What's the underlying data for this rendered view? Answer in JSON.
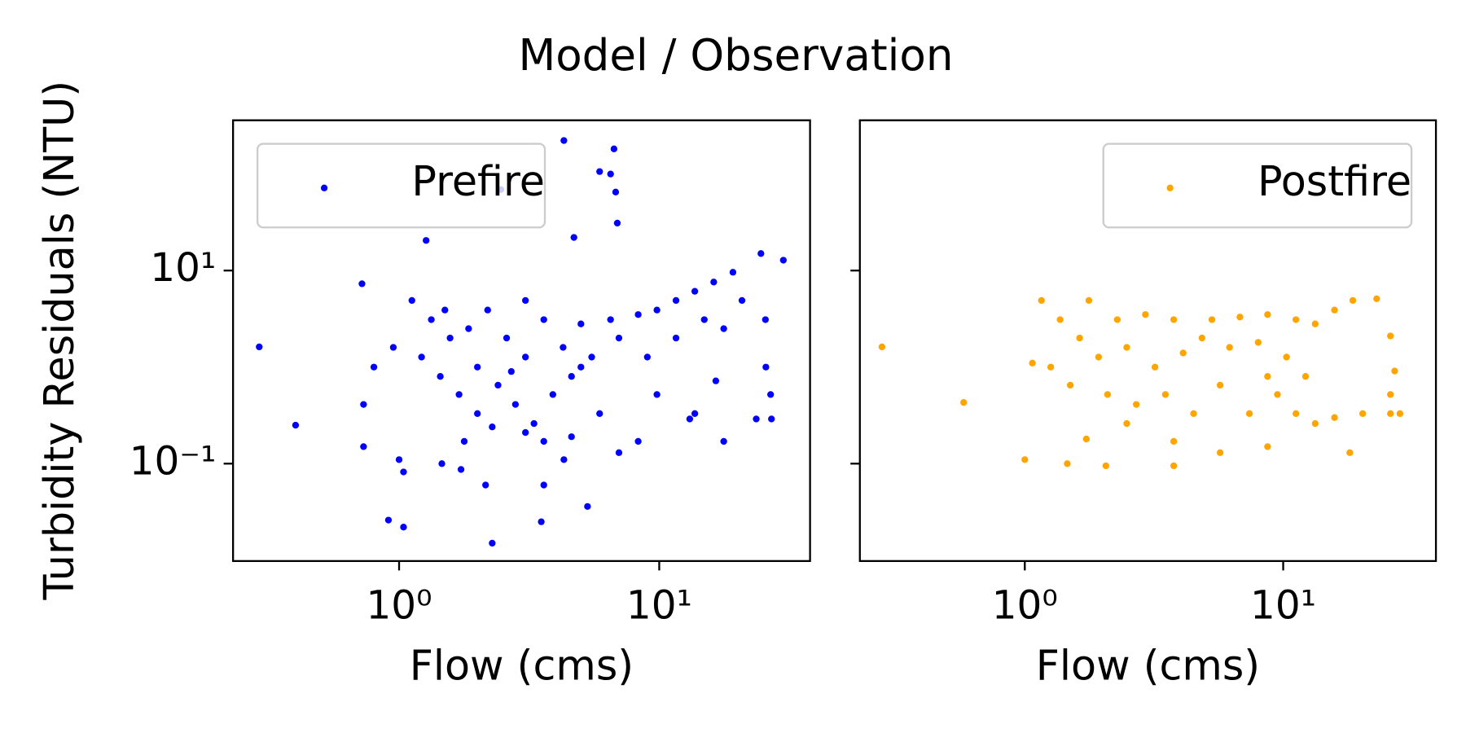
{
  "title": "Model / Observation",
  "ylabel": "Turbidity Residuals (NTU)",
  "chart_data": [
    {
      "type": "scatter",
      "xlabel": "Flow (cms)",
      "xscale": "log",
      "yscale": "log",
      "xlim": [
        0.23,
        38
      ],
      "ylim": [
        0.0098,
        360
      ],
      "xticks": [
        {
          "value": 1,
          "label": "10⁰"
        },
        {
          "value": 10,
          "label": "10¹"
        }
      ],
      "yticks": [
        {
          "value": 0.1,
          "label": "10⁻¹"
        },
        {
          "value": 10,
          "label": "10¹"
        }
      ],
      "legend": "upper left",
      "series": [
        {
          "name": "Prefire",
          "color": "#0000ff",
          "x": [
            0.29,
            0.4,
            0.72,
            0.73,
            0.73,
            0.91,
            1.0,
            1.04,
            1.04,
            1.27,
            1.46,
            1.73,
            2.15,
            2.28,
            2.46,
            3.52,
            3.6,
            4.3,
            4.7,
            5.3,
            6.7,
            6.5,
            6.8,
            6.9,
            5.9,
            30,
            24.6,
            19.2,
            16.2,
            13.7,
            11.6,
            9.8,
            8.3,
            6.5,
            5.0,
            25.6,
            20.8,
            17.7,
            25.7,
            26.8,
            27,
            23.6,
            17.7,
            13.1,
            9.8,
            8.3,
            7.0,
            5.9,
            1.12,
            1.33,
            1.57,
            1.85,
            2.19,
            2.59,
            3.06,
            3.6,
            4.27,
            5.0,
            1.22,
            1.44,
            1.7,
            2.0,
            2.4,
            2.8,
            3.3,
            3.9,
            4.6,
            5.5,
            0.8,
            0.95,
            2.0,
            2.7,
            1.5,
            3.06,
            7.0,
            9.0,
            11.6,
            14.9,
            3.6,
            4.3,
            3.06,
            1.78,
            2.28,
            4.6,
            13.7,
            16.5
          ],
          "y": [
            1.62,
            0.25,
            7.3,
            0.41,
            0.15,
            0.026,
            0.11,
            0.022,
            0.082,
            20.5,
            0.1,
            0.087,
            0.06,
            0.015,
            69,
            0.025,
            0.06,
            222,
            22,
            0.036,
            182,
            100,
            65,
            31,
            106,
            12.8,
            15,
            9.6,
            7.6,
            6.1,
            4.9,
            3.9,
            3.5,
            3.1,
            2.8,
            3.1,
            4.9,
            2.5,
            1.0,
            0.52,
            0.29,
            0.29,
            0.17,
            0.29,
            0.52,
            0.17,
            0.13,
            0.33,
            4.9,
            3.1,
            2.0,
            2.5,
            3.9,
            2.0,
            1.27,
            3.1,
            1.6,
            1.0,
            1.27,
            0.8,
            0.52,
            0.33,
            0.65,
            0.41,
            0.26,
            0.52,
            0.8,
            1.27,
            1.0,
            1.6,
            1.0,
            0.9,
            3.9,
            4.9,
            2.0,
            1.27,
            2.0,
            3.1,
            0.17,
            0.11,
            0.21,
            0.17,
            0.24,
            0.19,
            0.33,
            0.72
          ]
        }
      ]
    },
    {
      "type": "scatter",
      "xlabel": "Flow (cms)",
      "xscale": "log",
      "yscale": "log",
      "xlim": [
        0.23,
        39
      ],
      "ylim": [
        0.0098,
        360
      ],
      "xticks": [
        {
          "value": 1,
          "label": "10⁰"
        },
        {
          "value": 10,
          "label": "10¹"
        }
      ],
      "yticks": [
        0.1,
        10
      ],
      "legend": "upper right",
      "series": [
        {
          "name": "Postfire",
          "color": "#ffa500",
          "x": [
            0.28,
            0.58,
            1.0,
            1.46,
            2.06,
            3.77,
            1.73,
            3.77,
            5.7,
            8.7,
            13.3,
            18.1,
            20.3,
            26,
            28.3,
            27,
            26,
            23,
            18.6,
            15.8,
            13.3,
            11.2,
            8.7,
            6.8,
            5.3,
            3.77,
            2.93,
            2.28,
            1.77,
            1.16,
            1.37,
            1.63,
            1.93,
            1.26,
            1.07,
            2.48,
            3.19,
            4.1,
            4.85,
            6.2,
            8.0,
            10.3,
            12.2,
            1.5,
            2.09,
            2.7,
            3.5,
            4.5,
            5.7,
            7.4,
            9.5,
            11.2,
            15.8,
            2.48,
            8.7,
            26
          ],
          "y": [
            1.62,
            0.43,
            0.11,
            0.1,
            0.095,
            0.095,
            0.18,
            0.17,
            0.13,
            0.15,
            0.26,
            0.13,
            0.33,
            0.52,
            0.33,
            0.91,
            2.1,
            5.1,
            4.9,
            3.9,
            2.8,
            3.1,
            3.5,
            3.3,
            3.1,
            3.1,
            3.5,
            3.1,
            4.9,
            4.9,
            3.1,
            2.0,
            1.27,
            1.0,
            1.1,
            1.6,
            1.0,
            1.4,
            2.0,
            1.6,
            1.8,
            1.27,
            0.8,
            0.65,
            0.52,
            0.41,
            0.52,
            0.33,
            0.65,
            0.33,
            0.52,
            0.33,
            0.3,
            0.26,
            0.8,
            0.33
          ]
        }
      ]
    }
  ]
}
